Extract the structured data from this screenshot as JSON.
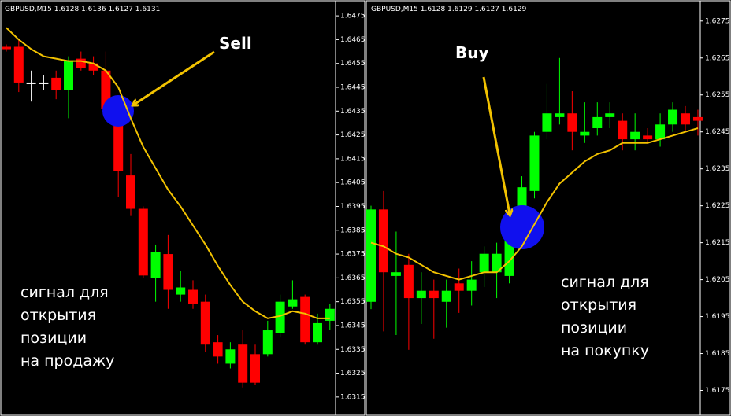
{
  "chart_data": [
    {
      "type": "candlestick",
      "title": "GBPUSD,M15  1.6128 1.6136 1.6127 1.6131",
      "ylim": [
        1.631,
        1.6479
      ],
      "yticks": [
        1.6475,
        1.6465,
        1.6455,
        1.6445,
        1.6435,
        1.6425,
        1.6415,
        1.6405,
        1.6395,
        1.6385,
        1.6375,
        1.6365,
        1.6355,
        1.6345,
        1.6335,
        1.6325,
        1.6315
      ],
      "open": [
        1.6462,
        1.6462,
        1.6447,
        1.6447,
        1.6449,
        1.6444,
        1.6457,
        1.6455,
        1.6452,
        1.6435,
        1.6408,
        1.6394,
        1.6365,
        1.6375,
        1.6358,
        1.636,
        1.6355,
        1.6338,
        1.6329,
        1.6337,
        1.6333,
        1.6333,
        1.6342,
        1.6353,
        1.6357,
        1.6338,
        1.6347
      ],
      "high": [
        1.6463,
        1.6465,
        1.6452,
        1.645,
        1.6452,
        1.6458,
        1.646,
        1.6458,
        1.646,
        1.6439,
        1.6417,
        1.6395,
        1.6379,
        1.6383,
        1.6368,
        1.6364,
        1.6358,
        1.6341,
        1.6338,
        1.6343,
        1.6337,
        1.6347,
        1.6358,
        1.6364,
        1.6358,
        1.635,
        1.6354
      ],
      "low": [
        1.646,
        1.6443,
        1.6439,
        1.6444,
        1.644,
        1.6432,
        1.6452,
        1.645,
        1.6434,
        1.6399,
        1.6391,
        1.6365,
        1.6355,
        1.6352,
        1.6355,
        1.6352,
        1.6334,
        1.6329,
        1.6327,
        1.6319,
        1.632,
        1.6332,
        1.634,
        1.6352,
        1.6337,
        1.6337,
        1.6343
      ],
      "close": [
        1.6461,
        1.6447,
        1.6447,
        1.6447,
        1.6444,
        1.6456,
        1.6453,
        1.6452,
        1.6436,
        1.641,
        1.6394,
        1.6366,
        1.6376,
        1.636,
        1.6361,
        1.6354,
        1.6337,
        1.6332,
        1.6335,
        1.6321,
        1.6321,
        1.6343,
        1.6355,
        1.6356,
        1.6338,
        1.6346,
        1.6352
      ],
      "up_color": "#00ff00",
      "down_color": "#ff0000",
      "flat_color": "#ffffff",
      "ma": {
        "color": "#f2c200",
        "values": [
          1.647,
          1.6465,
          1.6461,
          1.6458,
          1.6457,
          1.6456,
          1.6456,
          1.6455,
          1.6452,
          1.6445,
          1.6432,
          1.642,
          1.6411,
          1.6402,
          1.6395,
          1.6387,
          1.6379,
          1.637,
          1.6362,
          1.6355,
          1.6351,
          1.6348,
          1.6349,
          1.6351,
          1.635,
          1.6348,
          1.6348
        ]
      },
      "signal": "Sell",
      "note_lines": [
        "сигнал для",
        "открытия",
        "позиции",
        "на продажу"
      ]
    },
    {
      "type": "candlestick",
      "title": "GBPUSD,M15  1.6128 1.6129 1.6127 1.6129",
      "ylim": [
        1.617,
        1.6279
      ],
      "yticks": [
        1.6275,
        1.6265,
        1.6255,
        1.6245,
        1.6235,
        1.6225,
        1.6215,
        1.6205,
        1.6195,
        1.6185,
        1.6175
      ],
      "open": [
        1.6199,
        1.6224,
        1.6206,
        1.6209,
        1.62,
        1.6202,
        1.6199,
        1.6204,
        1.6202,
        1.6207,
        1.6207,
        1.6206,
        1.6218,
        1.6229,
        1.6245,
        1.6249,
        1.625,
        1.6244,
        1.6246,
        1.6249,
        1.6248,
        1.6243,
        1.6244,
        1.6243,
        1.6247,
        1.625,
        1.6249
      ],
      "high": [
        1.6225,
        1.6229,
        1.6218,
        1.6212,
        1.6207,
        1.6205,
        1.6205,
        1.6208,
        1.621,
        1.6214,
        1.6215,
        1.6222,
        1.6233,
        1.6245,
        1.6258,
        1.6265,
        1.6256,
        1.6253,
        1.6253,
        1.6253,
        1.625,
        1.625,
        1.6246,
        1.625,
        1.6253,
        1.6252,
        1.6251
      ],
      "low": [
        1.6197,
        1.6191,
        1.619,
        1.6186,
        1.6193,
        1.6189,
        1.6192,
        1.6196,
        1.6198,
        1.6203,
        1.62,
        1.6204,
        1.6216,
        1.6227,
        1.6243,
        1.6247,
        1.624,
        1.6242,
        1.6244,
        1.6246,
        1.624,
        1.624,
        1.6242,
        1.6241,
        1.6245,
        1.6245,
        1.6244
      ],
      "close": [
        1.6224,
        1.6207,
        1.6207,
        1.62,
        1.6202,
        1.62,
        1.6202,
        1.6202,
        1.6205,
        1.6212,
        1.6212,
        1.6219,
        1.623,
        1.6244,
        1.625,
        1.625,
        1.6245,
        1.6245,
        1.6249,
        1.625,
        1.6243,
        1.6245,
        1.6243,
        1.6247,
        1.6251,
        1.6247,
        1.6248
      ],
      "up_color": "#00ff00",
      "down_color": "#ff0000",
      "flat_color": "#ffffff",
      "ma": {
        "color": "#f2c200",
        "values": [
          1.6215,
          1.6214,
          1.6212,
          1.6211,
          1.6209,
          1.6207,
          1.6206,
          1.6205,
          1.6206,
          1.6207,
          1.6207,
          1.621,
          1.6214,
          1.622,
          1.6226,
          1.6231,
          1.6234,
          1.6237,
          1.6239,
          1.624,
          1.6242,
          1.6242,
          1.6242,
          1.6243,
          1.6244,
          1.6245,
          1.6246
        ]
      },
      "signal": "Buy",
      "note_lines": [
        "сигнал для",
        "открытия",
        "позиции",
        "на покупку"
      ]
    }
  ]
}
